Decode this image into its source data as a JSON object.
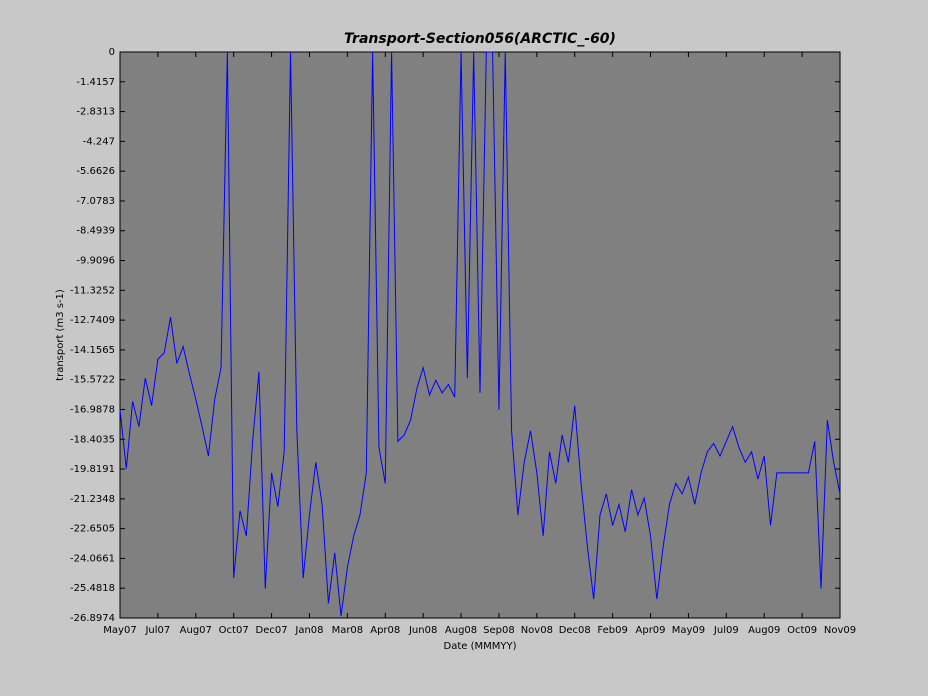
{
  "chart_data": {
    "type": "line",
    "title": "Transport-Section056(ARCTIC_-60)",
    "x_label": "Date (MMMYY)",
    "y_label": "transport (m3 s-1)",
    "color": "#0000ff",
    "x": [
      0,
      0.25,
      0.5,
      0.75,
      1,
      1.25,
      1.5,
      1.75,
      2,
      2.25,
      2.5,
      2.75,
      3,
      3.25,
      3.5,
      3.75,
      4,
      4.25,
      4.5,
      4.75,
      5,
      5.25,
      5.5,
      5.75,
      6,
      6.25,
      6.5,
      6.75,
      7,
      7.25,
      7.5,
      7.75,
      8,
      8.25,
      8.5,
      8.75,
      9,
      9.25,
      9.5,
      9.75,
      10,
      10.25,
      10.5,
      10.75,
      11,
      11.25,
      11.5,
      11.75,
      12,
      12.25,
      12.5,
      12.75,
      13,
      13.25,
      13.5,
      13.75,
      14,
      14.25,
      14.5,
      14.75,
      15,
      15.25,
      15.5,
      15.75,
      16,
      16.25,
      16.5,
      16.75,
      17,
      17.25,
      17.5,
      17.75,
      18,
      18.25,
      18.5,
      18.75,
      19,
      19.25,
      19.5,
      19.75,
      20,
      20.25,
      20.5,
      20.75,
      21,
      21.25,
      21.5,
      21.75,
      22,
      22.25,
      22.5,
      22.75,
      23,
      23.25,
      23.5,
      23.75,
      24,
      24.25,
      24.5,
      24.75,
      25,
      25.25,
      25.5,
      25.75,
      26,
      26.25,
      26.5,
      26.75,
      27,
      27.25,
      27.5,
      27.75,
      28,
      28.25,
      28.5
    ],
    "values": [
      -17.0,
      -19.8,
      -16.6,
      -17.8,
      -15.5,
      -16.8,
      -14.6,
      -14.3,
      -12.6,
      -14.8,
      -14.0,
      -15.3,
      -16.5,
      -17.8,
      -19.2,
      -16.5,
      -15.0,
      0,
      -25.0,
      -21.8,
      -23.0,
      -18.5,
      -15.2,
      -25.5,
      -20.0,
      -21.6,
      -19.0,
      0,
      -18.0,
      -25.0,
      -22.0,
      -19.5,
      -21.5,
      -26.2,
      -23.8,
      -26.8,
      -24.5,
      -23.0,
      -22.0,
      -20.0,
      0,
      -18.8,
      -20.5,
      0,
      -18.5,
      -18.2,
      -17.5,
      -16.0,
      -15.0,
      -16.3,
      -15.6,
      -16.2,
      -15.8,
      -16.4,
      0,
      -15.5,
      0,
      -16.2,
      0,
      0,
      -17.0,
      0,
      -18.0,
      -22.0,
      -19.5,
      -18.0,
      -20.0,
      -23.0,
      -19.0,
      -20.5,
      -18.2,
      -19.5,
      -16.8,
      -20.5,
      -23.5,
      -26.0,
      -22.0,
      -21.0,
      -22.5,
      -21.5,
      -22.8,
      -20.8,
      -22.0,
      -21.2,
      -23.0,
      -26.0,
      -23.5,
      -21.5,
      -20.5,
      -21.0,
      -20.2,
      -21.5,
      -20.0,
      -19.0,
      -18.6,
      -19.2,
      -18.5,
      -17.8,
      -18.8,
      -19.5,
      -19.0,
      -20.3,
      -19.2,
      -22.5,
      -20.0,
      -20.0,
      -20.0,
      -20.0,
      -20.0,
      -20.0,
      -18.5,
      -25.5,
      -17.5,
      -19.5,
      -21.0
    ],
    "xlim": [
      0,
      28.5
    ],
    "xticks": [
      {
        "value": 0,
        "label": "May07"
      },
      {
        "value": 1.5,
        "label": "Jul07"
      },
      {
        "value": 3,
        "label": "Aug07"
      },
      {
        "value": 4.5,
        "label": "Oct07"
      },
      {
        "value": 6,
        "label": "Dec07"
      },
      {
        "value": 7.5,
        "label": "Jan08"
      },
      {
        "value": 9,
        "label": "Mar08"
      },
      {
        "value": 10.5,
        "label": "Apr08"
      },
      {
        "value": 12,
        "label": "Jun08"
      },
      {
        "value": 13.5,
        "label": "Aug08"
      },
      {
        "value": 15,
        "label": "Sep08"
      },
      {
        "value": 16.5,
        "label": "Nov08"
      },
      {
        "value": 18,
        "label": "Dec08"
      },
      {
        "value": 19.5,
        "label": "Feb09"
      },
      {
        "value": 21,
        "label": "Apr09"
      },
      {
        "value": 22.5,
        "label": "May09"
      },
      {
        "value": 24,
        "label": "Jul09"
      },
      {
        "value": 25.5,
        "label": "Aug09"
      },
      {
        "value": 27,
        "label": "Oct09"
      },
      {
        "value": 28.5,
        "label": "Nov09"
      }
    ],
    "ylim": [
      -26.8974,
      0
    ],
    "yticks": [
      0,
      -1.4157,
      -2.8313,
      -4.247,
      -5.6626,
      -7.0783,
      -8.4939,
      -9.9096,
      -11.3252,
      -12.7409,
      -14.1565,
      -15.5722,
      -16.9878,
      -18.4035,
      -19.8191,
      -21.2348,
      -22.6505,
      -24.0661,
      -25.4818,
      -26.8974
    ]
  }
}
